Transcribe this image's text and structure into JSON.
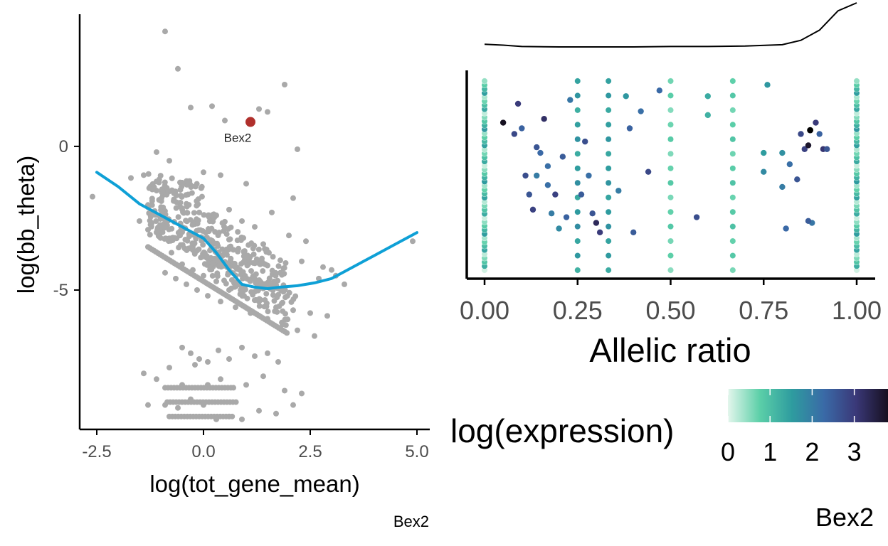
{
  "colors": {
    "background_points": "#a9a9a9",
    "highlight_point": "#b0302c",
    "smooth_line": "#0ea0d6",
    "axis": "#000000",
    "tick_label": "#4d4d4d",
    "density_line": "#000000",
    "gradient": [
      "#e3f6ec",
      "#5bcfa8",
      "#2e9c9f",
      "#3a6aa7",
      "#3a3878",
      "#161020"
    ]
  },
  "chart_data": [
    {
      "type": "scatter",
      "title": "",
      "xlabel": "log(tot_gene_mean)",
      "ylabel": "log(bb_theta)",
      "caption": "Bex2",
      "xlim": [
        -2.9,
        5.3
      ],
      "ylim": [
        -9.85,
        4.55
      ],
      "x_ticks": [
        -2.5,
        0,
        2.5,
        5
      ],
      "x_tick_labels": [
        "-2.5",
        "0.0",
        "2.5",
        "5.0"
      ],
      "y_ticks": [
        0,
        -5
      ],
      "y_tick_labels": [
        "0",
        "-5"
      ],
      "grid": false,
      "highlight": {
        "label": "Bex2",
        "x": 1.1,
        "y": 0.85
      },
      "smooth_curve": {
        "x": [
          -2.5,
          -2.0,
          -1.5,
          -1.0,
          -0.5,
          0.0,
          0.3,
          0.6,
          0.9,
          1.2,
          1.5,
          1.8,
          2.2,
          2.6,
          3.0,
          3.5,
          4.0,
          4.5,
          5.0
        ],
        "y": [
          -0.9,
          -1.4,
          -2.0,
          -2.4,
          -2.8,
          -3.2,
          -3.7,
          -4.3,
          -4.8,
          -4.9,
          -4.95,
          -4.9,
          -4.85,
          -4.75,
          -4.6,
          -4.2,
          -3.8,
          -3.4,
          -3.0
        ]
      },
      "points": {
        "x": [
          -0.9,
          -0.6,
          -0.3,
          0.2,
          0.5,
          1.3,
          1.9,
          1.5,
          2.2,
          -1.1,
          -0.8,
          0.0,
          0.4,
          1.0,
          2.1,
          -2.6,
          -1.7,
          -1.4,
          -1.2,
          -0.95,
          -0.7,
          -0.4,
          -0.1,
          0.15,
          0.3,
          0.6,
          0.9,
          1.2,
          1.6,
          2.0,
          2.4,
          2.8,
          3.1,
          3.3,
          4.9,
          -1.5,
          -1.3,
          -1.05,
          -0.8,
          -0.55,
          -0.25,
          0.05,
          0.35,
          0.7,
          1.05,
          1.4,
          1.8,
          2.3,
          2.7,
          3.0,
          -0.9,
          -0.65,
          -0.4,
          -0.15,
          0.1,
          0.4,
          0.75,
          1.1,
          1.5,
          1.85,
          2.2,
          2.6,
          -0.75,
          -0.5,
          -0.25,
          0.0,
          0.3,
          0.6,
          0.95,
          1.3,
          1.7,
          2.1,
          2.5,
          2.9,
          -0.5,
          -0.3,
          -0.1,
          0.1,
          0.35,
          0.6,
          0.9,
          1.2,
          1.5,
          1.75,
          -1.4,
          -1.1,
          -0.8,
          -0.5,
          -0.2,
          0.1,
          0.4,
          0.7,
          1.0,
          1.4,
          1.9,
          2.3,
          -1.3,
          -0.9,
          -0.6,
          -0.3,
          0.0,
          0.3,
          0.6,
          0.9,
          1.3,
          1.7,
          2.1
        ],
        "y": [
          4.0,
          2.7,
          1.35,
          1.4,
          0.9,
          1.3,
          2.15,
          1.2,
          -0.1,
          -0.2,
          -0.5,
          -0.9,
          -1.0,
          -1.3,
          -1.8,
          -1.75,
          -1.1,
          -1.0,
          -1.5,
          -1.7,
          -1.9,
          -2.0,
          -2.3,
          -2.5,
          -2.4,
          -2.2,
          -2.6,
          -2.8,
          -2.3,
          -3.1,
          -3.3,
          -4.2,
          -4.5,
          -4.8,
          -3.3,
          -2.6,
          -2.9,
          -3.0,
          -3.2,
          -3.1,
          -3.5,
          -3.0,
          -3.8,
          -3.6,
          -4.1,
          -3.4,
          -4.4,
          -4.0,
          -4.6,
          -4.3,
          -4.4,
          -4.6,
          -4.8,
          -5.0,
          -5.2,
          -5.4,
          -5.6,
          -5.8,
          -6.0,
          -6.2,
          -6.4,
          -6.6,
          -3.7,
          -4.1,
          -4.3,
          -4.5,
          -4.7,
          -5.0,
          -5.2,
          -5.4,
          -5.6,
          -5.7,
          -5.8,
          -5.9,
          -7.0,
          -7.2,
          -7.4,
          -7.5,
          -7.1,
          -7.4,
          -7.0,
          -7.3,
          -7.2,
          -7.5,
          -7.9,
          -8.1,
          -7.7,
          -8.3,
          -7.6,
          -8.3,
          -8.1,
          -8.4,
          -8.3,
          -8.0,
          -8.5,
          -8.6,
          -9.0,
          -9.0,
          -9.1,
          -8.8,
          -9.0,
          -9.5,
          -9.4,
          -9.5,
          -9.2,
          -9.3,
          -9.0
        ]
      }
    },
    {
      "type": "scatter",
      "title": "",
      "xlabel": "Allelic ratio",
      "ylabel": "",
      "caption": "Bex2",
      "xlim": [
        -0.035,
        1.045
      ],
      "x_ticks": [
        0.0,
        0.25,
        0.5,
        0.75,
        1.0
      ],
      "x_tick_labels": [
        "0.00",
        "0.25",
        "0.50",
        "0.75",
        "1.00"
      ],
      "y_axis_labels_shown": false,
      "grid": false,
      "color_legend": {
        "title": "log(expression)",
        "ticks": [
          0,
          1,
          2,
          3
        ],
        "tick_labels": [
          "0",
          "1",
          "2",
          "3"
        ],
        "range": [
          0,
          3.8
        ]
      },
      "density_curve": {
        "x": [
          0.0,
          0.05,
          0.1,
          0.2,
          0.3,
          0.4,
          0.5,
          0.6,
          0.7,
          0.8,
          0.85,
          0.9,
          0.95,
          1.0
        ],
        "density": [
          0.06,
          0.04,
          0.01,
          0.0,
          0.0,
          0.0,
          0.01,
          0.01,
          0.02,
          0.05,
          0.15,
          0.38,
          0.82,
          1.0
        ]
      },
      "columns": [
        {
          "x": 0.0,
          "expr_range": [
            0.1,
            1.6
          ]
        },
        {
          "x": 0.25,
          "expr_range": [
            1.2,
            1.8
          ]
        },
        {
          "x": 0.333,
          "expr_range": [
            1.3,
            1.7
          ]
        },
        {
          "x": 0.5,
          "expr_range": [
            0.5,
            0.9
          ]
        },
        {
          "x": 0.667,
          "expr_range": [
            0.6,
            1.0
          ]
        },
        {
          "x": 1.0,
          "expr_range": [
            0.1,
            1.6
          ]
        }
      ],
      "points": {
        "x": [
          0.05,
          0.08,
          0.09,
          0.1,
          0.12,
          0.13,
          0.14,
          0.16,
          0.17,
          0.18,
          0.2,
          0.21,
          0.27,
          0.28,
          0.29,
          0.3,
          0.31,
          0.36,
          0.38,
          0.39,
          0.4,
          0.42,
          0.44,
          0.47,
          0.57,
          0.6,
          0.6,
          0.75,
          0.75,
          0.76,
          0.8,
          0.8,
          0.81,
          0.82,
          0.84,
          0.85,
          0.86,
          0.87,
          0.88,
          0.89,
          0.9,
          0.91,
          0.92,
          0.11,
          0.15,
          0.19,
          0.22,
          0.23,
          0.26,
          0.14,
          0.17,
          0.87
        ],
        "y": [
          0.78,
          0.72,
          0.88,
          0.75,
          0.4,
          0.32,
          0.5,
          0.8,
          0.45,
          0.3,
          0.22,
          0.6,
          0.68,
          0.5,
          0.3,
          0.25,
          0.2,
          0.42,
          0.92,
          0.75,
          0.2,
          0.84,
          0.52,
          0.95,
          0.28,
          0.82,
          0.92,
          0.52,
          0.62,
          0.98,
          0.44,
          0.62,
          0.22,
          0.56,
          0.48,
          0.72,
          0.64,
          0.66,
          0.25,
          0.78,
          0.72,
          0.64,
          0.64,
          0.5,
          0.62,
          0.4,
          0.28,
          0.9,
          0.4,
          0.65,
          0.55,
          0.26
        ],
        "expr": [
          3.8,
          2.8,
          3.0,
          2.4,
          2.6,
          2.9,
          2.0,
          3.2,
          2.2,
          2.0,
          1.8,
          2.5,
          2.7,
          2.2,
          2.6,
          3.3,
          3.0,
          2.0,
          1.6,
          2.4,
          2.5,
          2.2,
          2.8,
          2.3,
          2.7,
          1.2,
          1.3,
          1.8,
          1.5,
          1.6,
          2.0,
          1.7,
          2.3,
          2.2,
          2.6,
          2.8,
          2.9,
          3.7,
          2.1,
          3.0,
          2.4,
          3.1,
          2.6,
          2.7,
          2.3,
          2.9,
          2.4,
          2.1,
          2.5,
          2.6,
          2.2,
          2.5
        ]
      }
    }
  ]
}
